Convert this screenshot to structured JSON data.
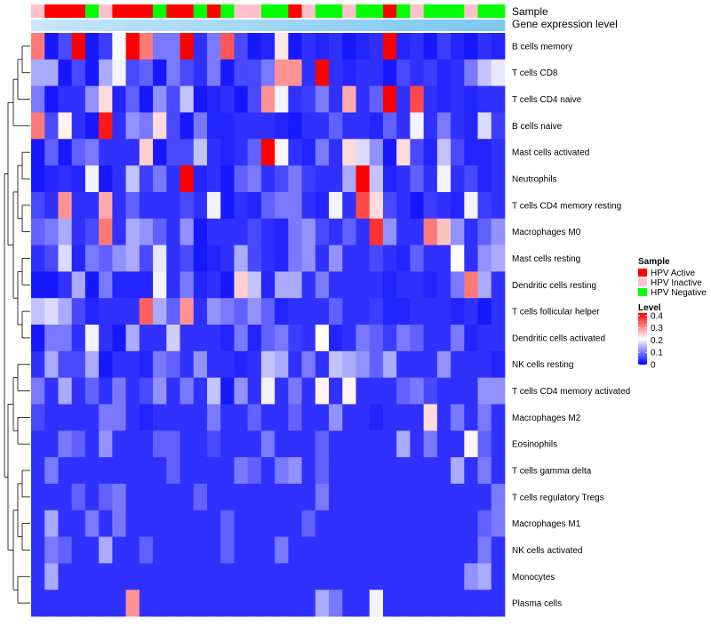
{
  "chart_data": {
    "type": "heatmap",
    "title": "",
    "tracks": [
      {
        "key": "sample",
        "label": "Sample"
      },
      {
        "key": "gene",
        "label": "Gene expression level"
      }
    ],
    "sample_legend": {
      "title": "Sample",
      "items": [
        {
          "label": "HPV Active",
          "color": "#ff0000"
        },
        {
          "label": "HPV Inactive",
          "color": "#ffc0cb"
        },
        {
          "label": "HPV Negative",
          "color": "#00ff00"
        }
      ]
    },
    "level_legend": {
      "title": "Level",
      "ticks": [
        0.4,
        0.3,
        0.2,
        0.1,
        0
      ],
      "tick_labels": [
        "0.4",
        "0.3",
        "0.2",
        "0.1",
        "0"
      ],
      "range": [
        0,
        0.42
      ],
      "colors": {
        "low": "#0000ff",
        "mid": "#ffffff",
        "high": "#ff0000"
      },
      "mid_value": 0.21
    },
    "sample_groups": [
      "I",
      "A",
      "A",
      "A",
      "N",
      "I",
      "A",
      "A",
      "A",
      "N",
      "A",
      "A",
      "N",
      "A",
      "N",
      "I",
      "I",
      "N",
      "N",
      "A",
      "I",
      "N",
      "N",
      "I",
      "N",
      "N",
      "A",
      "N",
      "I",
      "N",
      "N",
      "N",
      "I",
      "N",
      "N"
    ],
    "gene_levels": [
      0.3,
      0.33,
      0.36,
      0.38,
      0.41,
      0.43,
      0.45,
      0.48,
      0.5,
      0.52,
      0.54,
      0.56,
      0.58,
      0.6,
      0.62,
      0.64,
      0.66,
      0.68,
      0.7,
      0.72,
      0.74,
      0.76,
      0.78,
      0.8,
      0.82,
      0.84,
      0.86,
      0.88,
      0.9,
      0.92,
      0.94,
      0.96,
      0.97,
      0.98,
      0.99
    ],
    "gene_level_colors": {
      "low": "#e8f4fc",
      "high": "#7ec8f0"
    },
    "rows": [
      {
        "label": "B cells memory",
        "values": [
          0.32,
          0.02,
          0.06,
          0.42,
          0.02,
          0.05,
          0.21,
          0.42,
          0.32,
          0.1,
          0.1,
          0.42,
          0.04,
          0.1,
          0.35,
          0.06,
          0.02,
          0.03,
          0.23,
          0.02,
          0.04,
          0.03,
          0.04,
          0.02,
          0.03,
          0.04,
          0.42,
          0.03,
          0.04,
          0.02,
          0.05,
          0.03,
          0.02,
          0.04,
          0.03
        ]
      },
      {
        "label": "T cells CD8",
        "values": [
          0.14,
          0.14,
          0.02,
          0.06,
          0.02,
          0.14,
          0.2,
          0.06,
          0.08,
          0.02,
          0.1,
          0.06,
          0.04,
          0.1,
          0.02,
          0.06,
          0.06,
          0.1,
          0.3,
          0.3,
          0.04,
          0.42,
          0.04,
          0.03,
          0.04,
          0.04,
          0.02,
          0.06,
          0.04,
          0.05,
          0.03,
          0.04,
          0.1,
          0.16,
          0.19
        ]
      },
      {
        "label": "T cells CD4 naive",
        "values": [
          0.1,
          0.02,
          0.04,
          0.04,
          0.12,
          0.24,
          0.03,
          0.08,
          0.02,
          0.12,
          0.06,
          0.16,
          0.02,
          0.03,
          0.04,
          0.02,
          0.06,
          0.3,
          0.2,
          0.04,
          0.05,
          0.1,
          0.04,
          0.28,
          0.04,
          0.08,
          0.42,
          0.04,
          0.36,
          0.04,
          0.03,
          0.04,
          0.03,
          0.04,
          0.04
        ]
      },
      {
        "label": "B cells naive",
        "values": [
          0.32,
          0.06,
          0.22,
          0.04,
          0.02,
          0.4,
          0.04,
          0.12,
          0.1,
          0.24,
          0.06,
          0.02,
          0.1,
          0.03,
          0.03,
          0.04,
          0.04,
          0.04,
          0.03,
          0.02,
          0.04,
          0.04,
          0.08,
          0.04,
          0.04,
          0.03,
          0.08,
          0.04,
          0.2,
          0.04,
          0.1,
          0.04,
          0.03,
          0.18,
          0.05
        ]
      },
      {
        "label": "Mast cells activated",
        "values": [
          0.02,
          0.08,
          0.02,
          0.08,
          0.1,
          0.04,
          0.04,
          0.04,
          0.25,
          0.02,
          0.06,
          0.06,
          0.16,
          0.04,
          0.03,
          0.04,
          0.08,
          0.42,
          0.22,
          0.04,
          0.03,
          0.1,
          0.04,
          0.24,
          0.18,
          0.12,
          0.02,
          0.24,
          0.06,
          0.03,
          0.16,
          0.06,
          0.03,
          0.03,
          0.04
        ]
      },
      {
        "label": "Neutrophils",
        "values": [
          0.02,
          0.03,
          0.04,
          0.03,
          0.2,
          0.02,
          0.04,
          0.16,
          0.05,
          0.1,
          0.04,
          0.42,
          0.03,
          0.04,
          0.02,
          0.08,
          0.1,
          0.04,
          0.06,
          0.1,
          0.05,
          0.04,
          0.04,
          0.14,
          0.42,
          0.16,
          0.03,
          0.04,
          0.08,
          0.04,
          0.2,
          0.04,
          0.06,
          0.03,
          0.04
        ]
      },
      {
        "label": "T cells CD4 memory resting",
        "values": [
          0.06,
          0.04,
          0.3,
          0.04,
          0.04,
          0.28,
          0.04,
          0.08,
          0.04,
          0.04,
          0.04,
          0.06,
          0.04,
          0.2,
          0.02,
          0.04,
          0.03,
          0.08,
          0.1,
          0.1,
          0.04,
          0.03,
          0.2,
          0.04,
          0.36,
          0.24,
          0.06,
          0.04,
          0.02,
          0.05,
          0.04,
          0.03,
          0.2,
          0.05,
          0.04
        ]
      },
      {
        "label": "Macrophages M0",
        "values": [
          0.08,
          0.1,
          0.14,
          0.04,
          0.06,
          0.32,
          0.04,
          0.14,
          0.12,
          0.08,
          0.04,
          0.12,
          0.02,
          0.04,
          0.04,
          0.04,
          0.06,
          0.04,
          0.03,
          0.1,
          0.12,
          0.06,
          0.04,
          0.08,
          0.04,
          0.38,
          0.12,
          0.04,
          0.04,
          0.32,
          0.26,
          0.12,
          0.04,
          0.08,
          0.12
        ]
      },
      {
        "label": "Mast cells resting",
        "values": [
          0.04,
          0.06,
          0.18,
          0.03,
          0.1,
          0.08,
          0.12,
          0.14,
          0.06,
          0.19,
          0.04,
          0.06,
          0.02,
          0.03,
          0.04,
          0.14,
          0.06,
          0.04,
          0.03,
          0.1,
          0.12,
          0.04,
          0.12,
          0.04,
          0.04,
          0.06,
          0.04,
          0.03,
          0.08,
          0.04,
          0.04,
          0.21,
          0.04,
          0.12,
          0.14
        ]
      },
      {
        "label": "Dendritic cells resting",
        "values": [
          0.02,
          0.02,
          0.04,
          0.14,
          0.02,
          0.1,
          0.03,
          0.03,
          0.03,
          0.2,
          0.04,
          0.1,
          0.03,
          0.04,
          0.02,
          0.25,
          0.16,
          0.03,
          0.14,
          0.14,
          0.04,
          0.1,
          0.04,
          0.04,
          0.04,
          0.04,
          0.03,
          0.04,
          0.04,
          0.03,
          0.04,
          0.1,
          0.32,
          0.14,
          0.04
        ]
      },
      {
        "label": "T cells follicular helper",
        "values": [
          0.16,
          0.18,
          0.14,
          0.06,
          0.03,
          0.04,
          0.04,
          0.04,
          0.34,
          0.14,
          0.08,
          0.3,
          0.04,
          0.12,
          0.1,
          0.08,
          0.12,
          0.08,
          0.03,
          0.04,
          0.04,
          0.04,
          0.08,
          0.04,
          0.04,
          0.05,
          0.03,
          0.03,
          0.04,
          0.04,
          0.04,
          0.03,
          0.04,
          0.02,
          0.04
        ]
      },
      {
        "label": "Dendritic cells activated",
        "values": [
          0.02,
          0.1,
          0.1,
          0.04,
          0.2,
          0.04,
          0.02,
          0.14,
          0.04,
          0.04,
          0.17,
          0.04,
          0.04,
          0.04,
          0.03,
          0.1,
          0.03,
          0.08,
          0.1,
          0.05,
          0.04,
          0.21,
          0.03,
          0.04,
          0.1,
          0.08,
          0.05,
          0.1,
          0.08,
          0.04,
          0.04,
          0.1,
          0.03,
          0.04,
          0.04
        ]
      },
      {
        "label": "NK cells resting",
        "values": [
          0.04,
          0.14,
          0.06,
          0.06,
          0.14,
          0.02,
          0.04,
          0.04,
          0.03,
          0.1,
          0.08,
          0.04,
          0.12,
          0.04,
          0.04,
          0.03,
          0.04,
          0.16,
          0.14,
          0.04,
          0.1,
          0.04,
          0.16,
          0.14,
          0.12,
          0.08,
          0.14,
          0.04,
          0.04,
          0.04,
          0.12,
          0.04,
          0.04,
          0.04,
          0.03
        ]
      },
      {
        "label": "T cells CD4 memory activated",
        "values": [
          0.1,
          0.04,
          0.14,
          0.04,
          0.08,
          0.04,
          0.1,
          0.04,
          0.06,
          0.12,
          0.04,
          0.1,
          0.04,
          0.16,
          0.02,
          0.12,
          0.04,
          0.2,
          0.04,
          0.1,
          0.04,
          0.22,
          0.04,
          0.22,
          0.04,
          0.04,
          0.04,
          0.08,
          0.1,
          0.06,
          0.04,
          0.04,
          0.04,
          0.12,
          0.12
        ]
      },
      {
        "label": "Macrophages M2",
        "values": [
          0.06,
          0.04,
          0.04,
          0.04,
          0.04,
          0.1,
          0.1,
          0.04,
          0.03,
          0.04,
          0.04,
          0.04,
          0.04,
          0.1,
          0.04,
          0.04,
          0.08,
          0.04,
          0.04,
          0.08,
          0.04,
          0.04,
          0.12,
          0.04,
          0.04,
          0.03,
          0.04,
          0.04,
          0.04,
          0.24,
          0.04,
          0.1,
          0.04,
          0.1,
          0.04
        ]
      },
      {
        "label": "Eosinophils",
        "values": [
          0.04,
          0.04,
          0.1,
          0.08,
          0.04,
          0.12,
          0.04,
          0.04,
          0.04,
          0.08,
          0.08,
          0.04,
          0.04,
          0.06,
          0.04,
          0.04,
          0.04,
          0.1,
          0.04,
          0.04,
          0.04,
          0.08,
          0.04,
          0.04,
          0.04,
          0.04,
          0.04,
          0.14,
          0.04,
          0.1,
          0.04,
          0.04,
          0.22,
          0.08,
          0.04
        ]
      },
      {
        "label": "T cells gamma delta",
        "values": [
          0.04,
          0.1,
          0.04,
          0.04,
          0.04,
          0.04,
          0.04,
          0.04,
          0.04,
          0.04,
          0.08,
          0.04,
          0.04,
          0.04,
          0.04,
          0.1,
          0.08,
          0.04,
          0.1,
          0.12,
          0.04,
          0.08,
          0.04,
          0.04,
          0.04,
          0.04,
          0.04,
          0.04,
          0.04,
          0.04,
          0.04,
          0.14,
          0.04,
          0.1,
          0.04
        ]
      },
      {
        "label": "T cells regulatory  Tregs",
        "values": [
          0.04,
          0.04,
          0.04,
          0.08,
          0.04,
          0.08,
          0.1,
          0.04,
          0.04,
          0.04,
          0.04,
          0.04,
          0.08,
          0.04,
          0.04,
          0.04,
          0.04,
          0.04,
          0.04,
          0.04,
          0.04,
          0.1,
          0.04,
          0.04,
          0.04,
          0.04,
          0.04,
          0.04,
          0.04,
          0.04,
          0.04,
          0.04,
          0.04,
          0.04,
          0.1
        ]
      },
      {
        "label": "Macrophages M1",
        "values": [
          0.04,
          0.14,
          0.04,
          0.04,
          0.1,
          0.04,
          0.1,
          0.04,
          0.04,
          0.04,
          0.04,
          0.04,
          0.04,
          0.04,
          0.08,
          0.04,
          0.04,
          0.04,
          0.04,
          0.04,
          0.08,
          0.04,
          0.04,
          0.04,
          0.04,
          0.04,
          0.04,
          0.04,
          0.04,
          0.04,
          0.04,
          0.04,
          0.04,
          0.08,
          0.1
        ]
      },
      {
        "label": "NK cells activated",
        "values": [
          0.04,
          0.1,
          0.08,
          0.04,
          0.04,
          0.14,
          0.04,
          0.04,
          0.08,
          0.04,
          0.04,
          0.04,
          0.04,
          0.04,
          0.08,
          0.04,
          0.04,
          0.04,
          0.1,
          0.04,
          0.04,
          0.04,
          0.04,
          0.04,
          0.04,
          0.04,
          0.04,
          0.04,
          0.04,
          0.04,
          0.04,
          0.04,
          0.04,
          0.1,
          0.04
        ]
      },
      {
        "label": "Monocytes",
        "values": [
          0.04,
          0.14,
          0.04,
          0.04,
          0.04,
          0.04,
          0.04,
          0.04,
          0.04,
          0.04,
          0.04,
          0.04,
          0.04,
          0.04,
          0.04,
          0.04,
          0.04,
          0.04,
          0.04,
          0.04,
          0.04,
          0.04,
          0.04,
          0.04,
          0.04,
          0.04,
          0.04,
          0.04,
          0.04,
          0.04,
          0.04,
          0.04,
          0.12,
          0.14,
          0.04
        ]
      },
      {
        "label": "Plasma cells",
        "values": [
          0.04,
          0.04,
          0.04,
          0.04,
          0.04,
          0.04,
          0.04,
          0.3,
          0.04,
          0.04,
          0.04,
          0.04,
          0.04,
          0.04,
          0.04,
          0.04,
          0.04,
          0.04,
          0.04,
          0.04,
          0.04,
          0.14,
          0.1,
          0.04,
          0.04,
          0.2,
          0.04,
          0.04,
          0.04,
          0.04,
          0.04,
          0.04,
          0.04,
          0.04,
          0.04
        ]
      }
    ]
  }
}
